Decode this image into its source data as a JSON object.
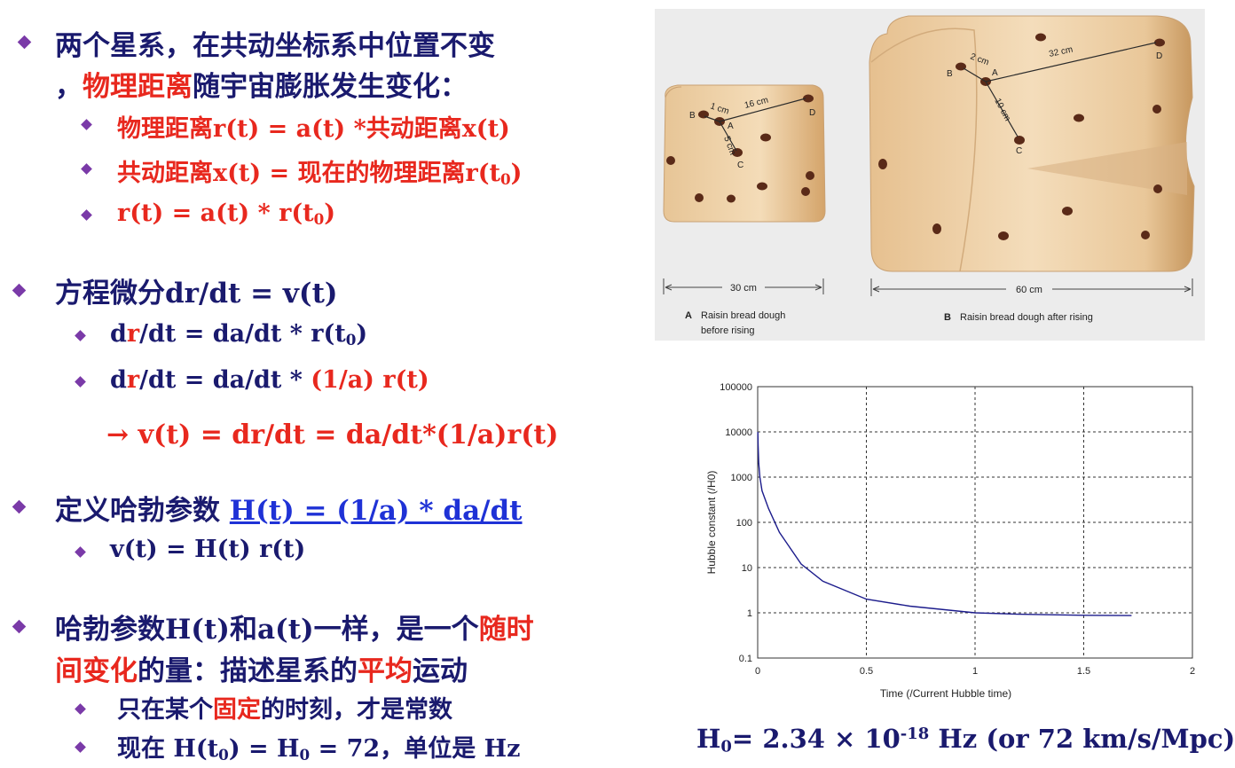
{
  "left": {
    "b1": {
      "line1": "两个星系，在共动坐标系中位置不变",
      "line2_pre": "，",
      "line2_red": "物理距离",
      "line2_post": "随宇宙膨胀发生变化："
    },
    "b1_subs": [
      "物理距离r(t) = a(t) *共动距离x(t)",
      "共动距离x(t) = 现在的物理距离r(t",
      "r(t) = a(t) * r(t"
    ],
    "sub_0": "0",
    "sub_close": ")",
    "b2": {
      "text": "方程微分dr/dt = v(t)"
    },
    "b2_s1": {
      "d": "d",
      "r": "r",
      "rest": "/dt = da/dt * r(t",
      "sub": "0",
      "close": ")"
    },
    "b2_s2": {
      "d": "d",
      "r": "r",
      "rest": "/dt = da/dt * ",
      "red": "(1/a) r(t)"
    },
    "arrow_line": "→ v(t) = dr/dt = da/dt*(1/a)r(t)",
    "b3": {
      "pre": "定义哈勃参数 ",
      "link": "H(t) = (1/a) * da/dt"
    },
    "b3_s1": "v(t) = H(t) r(t)",
    "b4": {
      "l1_pre": "哈勃参数H(t)和a(t)一样，是一个",
      "l1_red": "随时",
      "l2_red": "间变化",
      "l2_mid": "的量：描述星系的",
      "l2_red2": "平均",
      "l2_post": "运动"
    },
    "b4_s1": {
      "pre": "只在某个",
      "red": "固定",
      "post": "的时刻，才是常数"
    },
    "b4_s2": {
      "pre": "现在 H(t",
      "sub": "0",
      "mid": ") = H",
      "sub2": "0",
      "post": " = 72，单位是 Hz"
    }
  },
  "figure": {
    "a_labels": {
      "d1": "1 cm",
      "d2": "16 cm",
      "d3": "5 cm",
      "B": "B",
      "A": "A",
      "C": "C",
      "D": "D"
    },
    "b_labels": {
      "d1": "2 cm",
      "d2": "32 cm",
      "d3": "10 cm",
      "B": "B",
      "A": "A",
      "C": "C",
      "D": "D"
    },
    "width_a": "30 cm",
    "width_b": "60 cm",
    "caption_a_letter": "A",
    "caption_a_1": "Raisin bread dough",
    "caption_a_2": "before rising",
    "caption_b_letter": "B",
    "caption_b": "Raisin bread dough after rising"
  },
  "chart_data": {
    "type": "line",
    "xlabel": "Time (/Current Hubble time)",
    "ylabel": "Hubble constant (/H0)",
    "xlim": [
      0,
      2
    ],
    "ylim": [
      0.1,
      100000
    ],
    "y_scale": "log",
    "grid": true,
    "x_ticks": [
      "0",
      "0.5",
      "1",
      "1.5",
      "2"
    ],
    "y_ticks": [
      "100000",
      "10000",
      "1000",
      "100",
      "10",
      "1",
      "0.1"
    ],
    "x": [
      0.001,
      0.002,
      0.005,
      0.01,
      0.02,
      0.05,
      0.1,
      0.2,
      0.3,
      0.5,
      0.7,
      1.0,
      1.2,
      1.5,
      1.72
    ],
    "y": [
      10000,
      5000,
      2000,
      1000,
      500,
      200,
      60,
      12,
      5,
      2,
      1.4,
      1.0,
      0.93,
      0.88,
      0.87
    ],
    "line_color": "#1c1c8c"
  },
  "h0_caption": {
    "pre": "H",
    "sub": "0",
    "mid": "= 2.34 × 10",
    "sup": "-18",
    "post": " Hz (or 72 km/s/Mpc)"
  }
}
